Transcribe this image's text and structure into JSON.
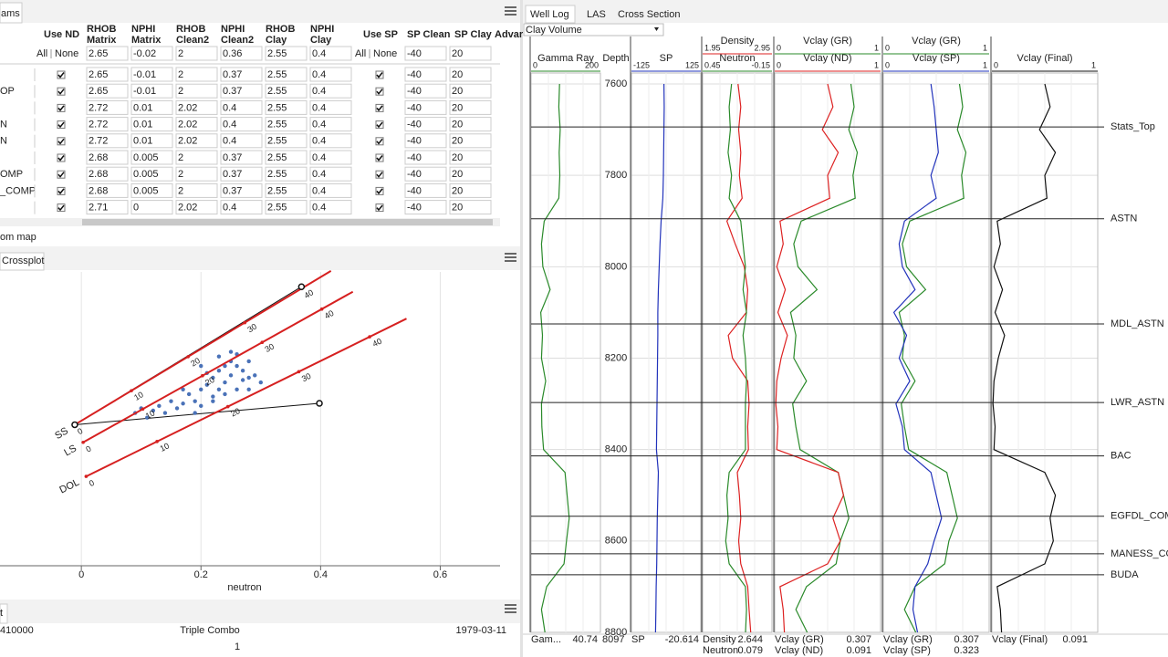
{
  "ui": {
    "params_tab": "ams",
    "table": {
      "headers": [
        "Use ND",
        "RHOB Matrix",
        "NPHI Matrix",
        "RHOB Clean2",
        "NPHI Clean2",
        "RHOB Clay",
        "NPHI Clay",
        "Use SP",
        "SP Clean",
        "SP Clay",
        "Advar"
      ],
      "filter": {
        "all": "All",
        "none": "None",
        "values": [
          "2.65",
          "-0.02",
          "2",
          "0.36",
          "2.55",
          "0.4",
          "-40",
          "20"
        ]
      },
      "rows": [
        {
          "name": null,
          "use_nd": true,
          "use_sp": true,
          "values": [
            "2.65",
            "-0.01",
            "2",
            "0.37",
            "2.55",
            "0.4",
            "-40",
            "20"
          ]
        },
        {
          "name": "OP",
          "use_nd": true,
          "use_sp": true,
          "values": [
            "2.65",
            "-0.01",
            "2",
            "0.37",
            "2.55",
            "0.4",
            "-40",
            "20"
          ]
        },
        {
          "name": null,
          "use_nd": true,
          "use_sp": true,
          "values": [
            "2.72",
            "0.01",
            "2.02",
            "0.4",
            "2.55",
            "0.4",
            "-40",
            "20"
          ]
        },
        {
          "name": "N",
          "use_nd": true,
          "use_sp": true,
          "values": [
            "2.72",
            "0.01",
            "2.02",
            "0.4",
            "2.55",
            "0.4",
            "-40",
            "20"
          ]
        },
        {
          "name": "N",
          "use_nd": true,
          "use_sp": true,
          "values": [
            "2.72",
            "0.01",
            "2.02",
            "0.4",
            "2.55",
            "0.4",
            "-40",
            "20"
          ]
        },
        {
          "name": null,
          "use_nd": true,
          "use_sp": true,
          "values": [
            "2.68",
            "0.005",
            "2",
            "0.37",
            "2.55",
            "0.4",
            "-40",
            "20"
          ]
        },
        {
          "name": "OMP",
          "use_nd": true,
          "use_sp": true,
          "values": [
            "2.68",
            "0.005",
            "2",
            "0.37",
            "2.55",
            "0.4",
            "-40",
            "20"
          ]
        },
        {
          "name": "_COMP",
          "use_nd": true,
          "use_sp": true,
          "values": [
            "2.68",
            "0.005",
            "2",
            "0.37",
            "2.55",
            "0.4",
            "-40",
            "20"
          ]
        },
        {
          "name": null,
          "use_nd": true,
          "use_sp": true,
          "values": [
            "2.71",
            "0",
            "2.02",
            "0.4",
            "2.55",
            "0.4",
            "-40",
            "20"
          ]
        }
      ]
    },
    "map_label": "om map",
    "crossplot_tab": "Crossplot",
    "info": {
      "tab": "t",
      "id": "410000",
      "name": "Triple Combo",
      "date": "1979-03-11",
      "page": "1"
    },
    "well_tabs": [
      "Well Log",
      "LAS",
      "Cross Section"
    ],
    "selector": "Clay Volume"
  },
  "chart_data": [
    {
      "type": "scatter",
      "x_label": "neutron",
      "xlim": [
        -0.136,
        0.7
      ],
      "ylim": [
        3.25,
        2.0
      ],
      "xticks": [
        0,
        0.2,
        0.4,
        0.6
      ],
      "grid": true,
      "points": {
        "color": "#4a72b8",
        "x": [
          0.09,
          0.1,
          0.12,
          0.13,
          0.14,
          0.15,
          0.16,
          0.17,
          0.18,
          0.19,
          0.2,
          0.2,
          0.21,
          0.22,
          0.22,
          0.23,
          0.23,
          0.24,
          0.24,
          0.25,
          0.25,
          0.26,
          0.26,
          0.27,
          0.27,
          0.28,
          0.28,
          0.29,
          0.3,
          0.21,
          0.19,
          0.23,
          0.25,
          0.17,
          0.11,
          0.2,
          0.24,
          0.26,
          0.22,
          0.28
        ],
        "y": [
          2.6,
          2.58,
          2.59,
          2.57,
          2.6,
          2.55,
          2.58,
          2.56,
          2.52,
          2.55,
          2.5,
          2.57,
          2.48,
          2.45,
          2.53,
          2.42,
          2.5,
          2.4,
          2.47,
          2.38,
          2.44,
          2.4,
          2.5,
          2.42,
          2.46,
          2.38,
          2.45,
          2.44,
          2.47,
          2.43,
          2.6,
          2.36,
          2.34,
          2.5,
          2.62,
          2.4,
          2.52,
          2.35,
          2.55,
          2.5
        ]
      },
      "lithology_lines": [
        {
          "name": "SS",
          "color": "#d62020",
          "ticks": [
            0,
            10,
            20,
            30,
            40
          ],
          "x": [
            -0.011,
            0.368
          ],
          "y": [
            2.65,
            2.071
          ]
        },
        {
          "name": "LS",
          "color": "#d62020",
          "ticks": [
            0,
            10,
            20,
            30,
            40
          ],
          "x": [
            0.003,
            0.402
          ],
          "y": [
            2.725,
            2.158
          ]
        },
        {
          "name": "DOL",
          "color": "#d62020",
          "ticks": [
            0,
            10,
            20,
            30,
            40
          ],
          "x": [
            0.008,
            0.482
          ],
          "y": [
            2.87,
            2.276
          ]
        }
      ],
      "reference": {
        "color": "#111",
        "x": [
          -0.011,
          0.368,
          0.398
        ],
        "y": [
          2.65,
          2.063,
          2.559
        ]
      }
    },
    {
      "type": "log",
      "depth_label": "Depth",
      "ylim": [
        7576,
        8800
      ],
      "yticks": [
        7600,
        7800,
        8000,
        8200,
        8400,
        8600,
        8800
      ],
      "depth": [
        7600,
        7650,
        7700,
        7750,
        7800,
        7850,
        7900,
        7950,
        8000,
        8050,
        8100,
        8150,
        8200,
        8250,
        8300,
        8350,
        8400,
        8450,
        8500,
        8550,
        8600,
        8650,
        8700,
        8750,
        8800
      ],
      "tracks": [
        {
          "curves": [
            {
              "name": "Gamma Ray",
              "color": "#2a8a2a",
              "xlim": [
                0,
                200
              ],
              "values": [
                82,
                80,
                84,
                81,
                83,
                80,
                38,
                30,
                34,
                55,
                28,
                33,
                30,
                42,
                30,
                31,
                36,
                98,
                104,
                110,
                102,
                95,
                45,
                30,
                40
              ]
            }
          ]
        },
        {
          "curves": [
            {
              "name": "SP",
              "color": "#2233bb",
              "xlim": [
                -125,
                125
              ],
              "values": [
                -8,
                -7,
                -8,
                -9,
                -10,
                -12,
                -18,
                -22,
                -25,
                -28,
                -30,
                -30,
                -31,
                -32,
                -33,
                -34,
                -35,
                -28,
                -30,
                -32,
                -33,
                -34,
                -36,
                -37,
                -38
              ]
            }
          ]
        },
        {
          "curves": [
            {
              "name": "Density",
              "color": "#dd2222",
              "xlim": [
                1.95,
                2.95
              ],
              "values": [
                2.46,
                2.5,
                2.47,
                2.5,
                2.48,
                2.52,
                2.3,
                2.42,
                2.55,
                2.6,
                2.58,
                2.32,
                2.38,
                2.6,
                2.62,
                2.6,
                2.61,
                2.45,
                2.48,
                2.5,
                2.47,
                2.5,
                2.6,
                2.62,
                2.644
              ]
            },
            {
              "name": "Neutron",
              "color": "#2a8a2a",
              "xlim": [
                0.45,
                -0.15
              ],
              "values": [
                0.2,
                0.22,
                0.21,
                0.23,
                0.2,
                0.22,
                0.12,
                0.1,
                0.08,
                0.1,
                0.07,
                0.1,
                0.08,
                0.07,
                0.08,
                0.08,
                0.08,
                0.22,
                0.24,
                0.23,
                0.25,
                0.22,
                0.08,
                0.07,
                0.079
              ]
            }
          ]
        },
        {
          "curves": [
            {
              "name": "Vclay (GR)",
              "color": "#2a8a2a",
              "xlim": [
                0,
                1
              ],
              "values": [
                0.72,
                0.75,
                0.7,
                0.78,
                0.74,
                0.76,
                0.25,
                0.18,
                0.22,
                0.4,
                0.15,
                0.2,
                0.18,
                0.3,
                0.17,
                0.2,
                0.24,
                0.6,
                0.65,
                0.7,
                0.62,
                0.58,
                0.3,
                0.2,
                0.307
              ]
            },
            {
              "name": "Vclay (ND)",
              "color": "#dd2222",
              "xlim": [
                0,
                1
              ],
              "values": [
                0.5,
                0.55,
                0.45,
                0.6,
                0.5,
                0.52,
                0.05,
                0.08,
                0.02,
                0.1,
                0.03,
                0.12,
                0.06,
                0.02,
                0.01,
                0.03,
                0.02,
                0.6,
                0.65,
                0.55,
                0.62,
                0.5,
                0.05,
                0.08,
                0.091
              ]
            }
          ]
        },
        {
          "curves": [
            {
              "name": "Vclay (GR)",
              "color": "#2a8a2a",
              "xlim": [
                0,
                1
              ],
              "values": [
                0.72,
                0.75,
                0.7,
                0.78,
                0.74,
                0.76,
                0.25,
                0.18,
                0.22,
                0.4,
                0.15,
                0.2,
                0.18,
                0.3,
                0.17,
                0.2,
                0.24,
                0.6,
                0.65,
                0.7,
                0.62,
                0.58,
                0.3,
                0.2,
                0.307
              ]
            },
            {
              "name": "Vclay (SP)",
              "color": "#2233bb",
              "xlim": [
                0,
                1
              ],
              "values": [
                0.45,
                0.48,
                0.5,
                0.52,
                0.45,
                0.5,
                0.2,
                0.15,
                0.18,
                0.3,
                0.1,
                0.22,
                0.15,
                0.25,
                0.12,
                0.18,
                0.2,
                0.45,
                0.5,
                0.55,
                0.48,
                0.42,
                0.3,
                0.28,
                0.323
              ]
            }
          ]
        },
        {
          "curves": [
            {
              "name": "Vclay (Final)",
              "color": "#111111",
              "xlim": [
                0,
                1
              ],
              "values": [
                0.5,
                0.55,
                0.45,
                0.6,
                0.5,
                0.52,
                0.05,
                0.08,
                0.02,
                0.1,
                0.03,
                0.12,
                0.06,
                0.02,
                0.01,
                0.03,
                0.02,
                0.5,
                0.6,
                0.55,
                0.58,
                0.5,
                0.05,
                0.08,
                0.091
              ]
            }
          ]
        }
      ],
      "tops": [
        {
          "name": "Stats_Top",
          "depth": 7694
        },
        {
          "name": "ASTN",
          "depth": 7895
        },
        {
          "name": "MDL_ASTN",
          "depth": 8125
        },
        {
          "name": "LWR_ASTN",
          "depth": 8297
        },
        {
          "name": "BAC",
          "depth": 8414
        },
        {
          "name": "EGFDL_COM",
          "depth": 8546
        },
        {
          "name": "MANESS_CO",
          "depth": 8628
        },
        {
          "name": "BUDA",
          "depth": 8674
        }
      ],
      "readout": {
        "depth": "8097",
        "items": [
          {
            "label": "Gam...",
            "value": "40.74"
          },
          {
            "label": "SP",
            "value": "-20.614"
          },
          {
            "label": "Density",
            "value": "2.644"
          },
          {
            "label": "Neutron",
            "value": "0.079"
          },
          {
            "label": "Vclay (GR)",
            "value": "0.307"
          },
          {
            "label": "Vclay (ND)",
            "value": "0.091"
          },
          {
            "label": "Vclay (GR)",
            "value": "0.307"
          },
          {
            "label": "Vclay (SP)",
            "value": "0.323"
          },
          {
            "label": "Vclay (Final)",
            "value": "0.091"
          }
        ]
      }
    }
  ]
}
